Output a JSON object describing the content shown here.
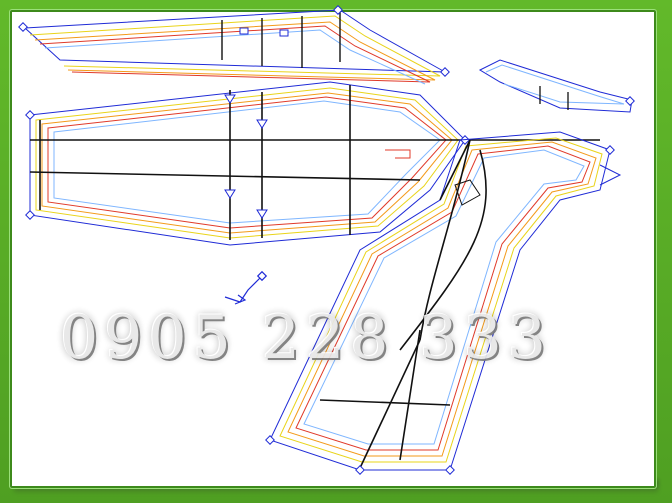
{
  "watermark": {
    "phone": "0905 228 333"
  },
  "colors": {
    "frame": "#5cb52a",
    "blue": "#1f2bd6",
    "black": "#111111",
    "red": "#e03a2a",
    "orange": "#f39a1a",
    "yellow": "#e9d41a",
    "light_blue": "#7fb6ff"
  },
  "drawing": {
    "pieces": [
      {
        "name": "sleeve-top-strip",
        "icon": "pattern-piece"
      },
      {
        "name": "sleeve-long",
        "icon": "pattern-piece"
      },
      {
        "name": "front-panel",
        "icon": "pattern-piece"
      },
      {
        "name": "collar-piece",
        "icon": "pattern-piece"
      },
      {
        "name": "small-arrow-mark",
        "icon": "arrow"
      }
    ]
  }
}
